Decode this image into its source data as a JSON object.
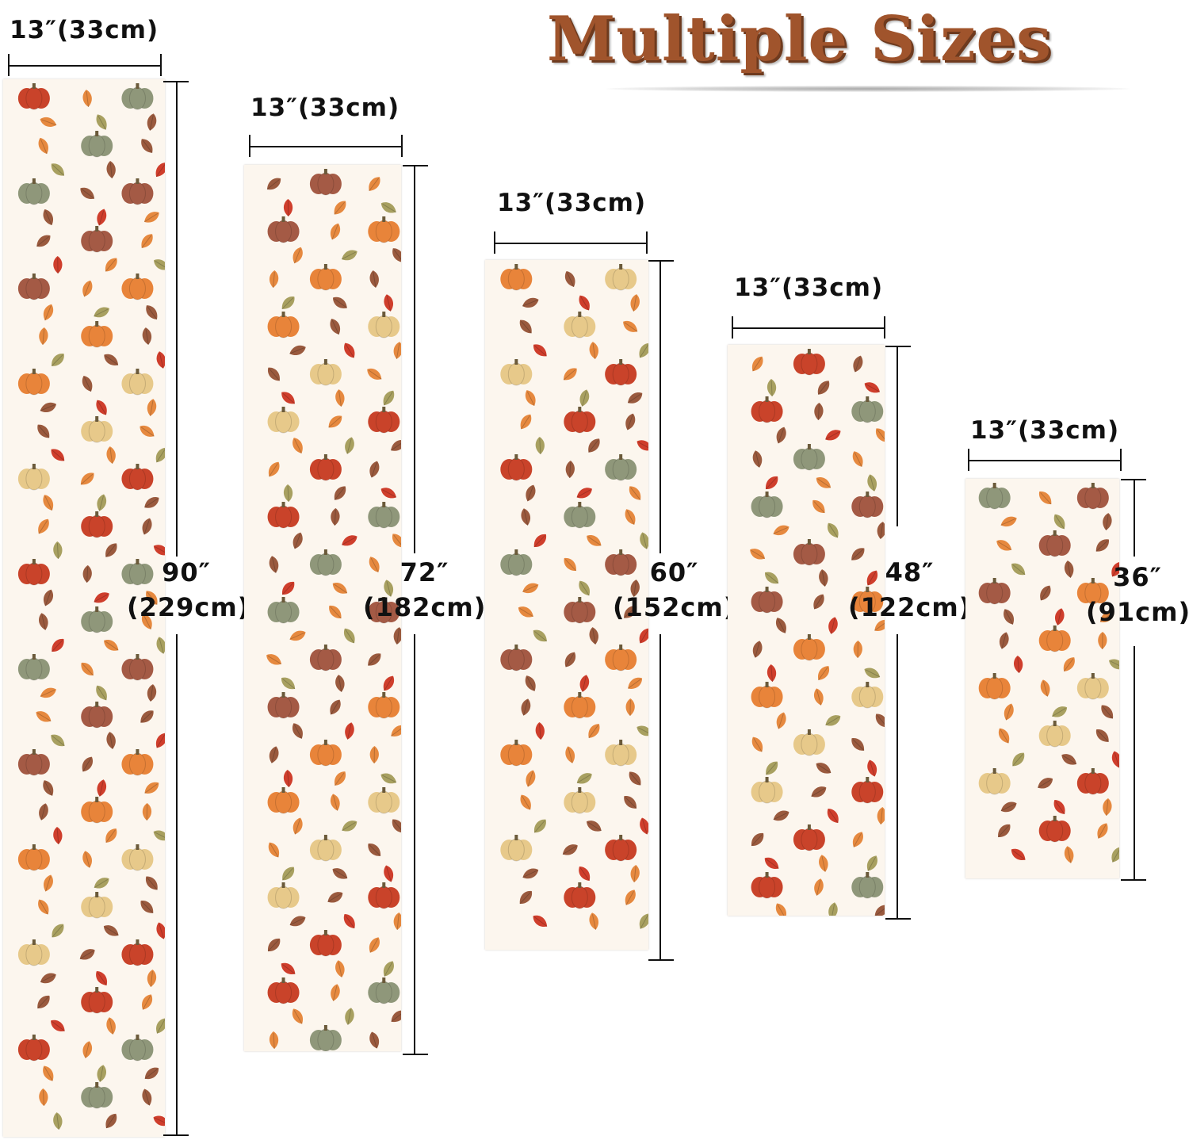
{
  "title": "Multiple Sizes",
  "runners": [
    {
      "width_label": "13″(33cm)",
      "length_in": "90″",
      "length_cm": "(229cm)"
    },
    {
      "width_label": "13″(33cm)",
      "length_in": "72″",
      "length_cm": "(182cm)"
    },
    {
      "width_label": "13″(33cm)",
      "length_in": "60″",
      "length_cm": "(152cm)"
    },
    {
      "width_label": "13″(33cm)",
      "length_in": "48″",
      "length_cm": "(122cm)"
    },
    {
      "width_label": "13″(33cm)",
      "length_in": "36″",
      "length_cm": "(91cm)"
    }
  ],
  "colors": {
    "title": "#a0542c",
    "fabric": "#fcf6ee",
    "pumpkin_red": "#c9432a",
    "pumpkin_orange": "#e8843a",
    "pumpkin_green": "#8f977a",
    "pumpkin_cream": "#e7c98a",
    "pumpkin_brown": "#a45a45",
    "leaf_red": "#cf3e2c",
    "leaf_orange": "#e6893f",
    "leaf_olive": "#a8a060",
    "leaf_brown": "#9a5a3e"
  }
}
